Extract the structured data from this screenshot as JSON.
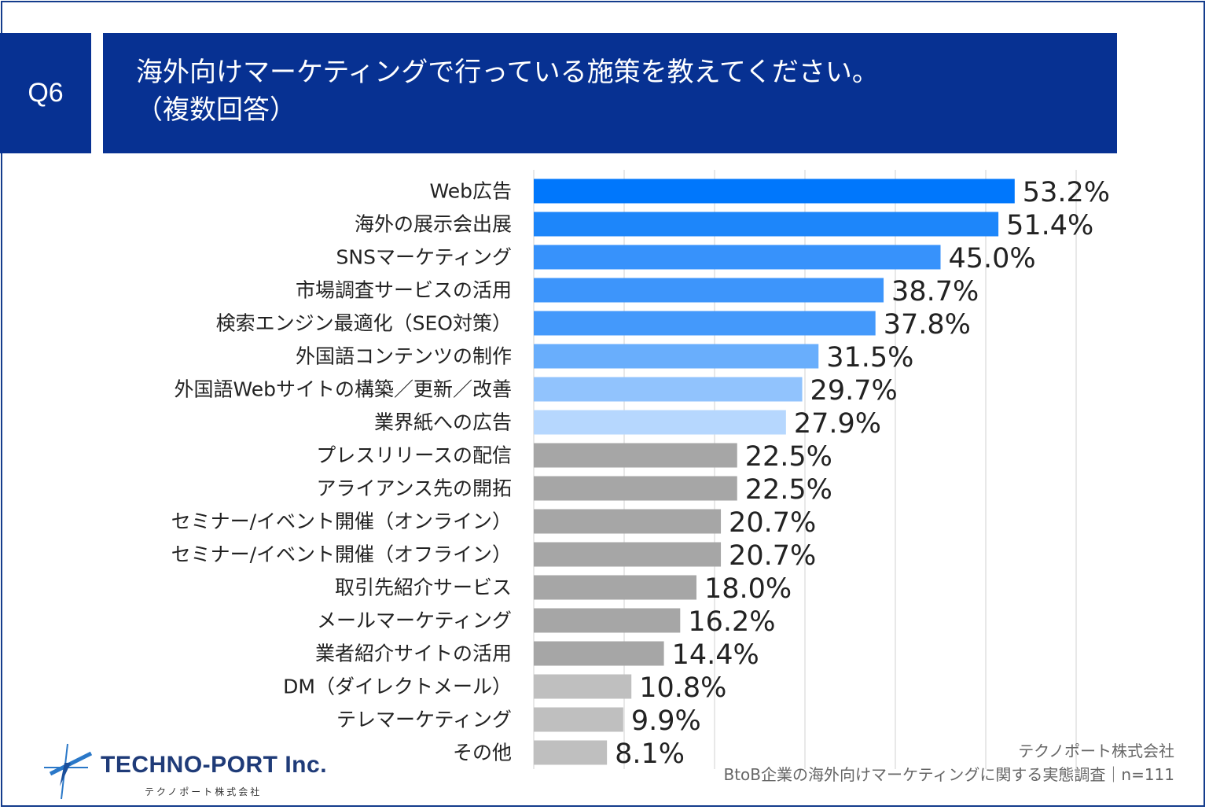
{
  "header": {
    "badge": "Q6",
    "title_line1": "海外向けマーケティングで行っている施策を教えてください。",
    "title_line2": "（複数回答）"
  },
  "colors": {
    "header_bg": "#073192",
    "frame": "#143c8c",
    "gray_bar": "#a6a6a6",
    "light_gray_bar": "#bfbfbf"
  },
  "chart_data": {
    "type": "bar",
    "orientation": "horizontal",
    "categories": [
      "Web広告",
      "海外の展示会出展",
      "SNSマーケティング",
      "市場調査サービスの活用",
      "検索エンジン最適化（SEO対策）",
      "外国語コンテンツの制作",
      "外国語Webサイトの構築／更新／改善",
      "業界紙への広告",
      "プレスリリースの配信",
      "アライアンス先の開拓",
      "セミナー/イベント開催（オンライン）",
      "セミナー/イベント開催（オフライン）",
      "取引先紹介サービス",
      "メールマーケティング",
      "業者紹介サイトの活用",
      "DM（ダイレクトメール）",
      "テレマーケティング",
      "その他"
    ],
    "values": [
      53.2,
      51.4,
      45.0,
      38.7,
      37.8,
      31.5,
      29.7,
      27.9,
      22.5,
      22.5,
      20.7,
      20.7,
      18.0,
      16.2,
      14.4,
      10.8,
      9.9,
      8.1
    ],
    "value_labels": [
      "53.2%",
      "51.4%",
      "45.0%",
      "38.7%",
      "37.8%",
      "31.5%",
      "29.7%",
      "27.9%",
      "22.5%",
      "22.5%",
      "20.7%",
      "20.7%",
      "18.0%",
      "16.2%",
      "14.4%",
      "10.8%",
      "9.9%",
      "8.1%"
    ],
    "bar_colors": [
      "#0077fc",
      "#1d86fa",
      "#3792fb",
      "#3d95fb",
      "#4499fb",
      "#69aefc",
      "#91c3fd",
      "#b6d7fe",
      "#a6a6a6",
      "#a6a6a6",
      "#a6a6a6",
      "#a6a6a6",
      "#a6a6a6",
      "#a6a6a6",
      "#a6a6a6",
      "#bfbfbf",
      "#bfbfbf",
      "#bfbfbf"
    ],
    "xlim": [
      0,
      60
    ],
    "grid": true,
    "title": "",
    "xlabel": "",
    "ylabel": ""
  },
  "source": {
    "line1": "テクノポート株式会社",
    "line2": "BtoB企業の海外向けマーケティングに関する実態調査｜n=111"
  },
  "logo": {
    "name": "TECHNO-PORT",
    "inc": "Inc.",
    "sub": "テクノポート株式会社"
  }
}
